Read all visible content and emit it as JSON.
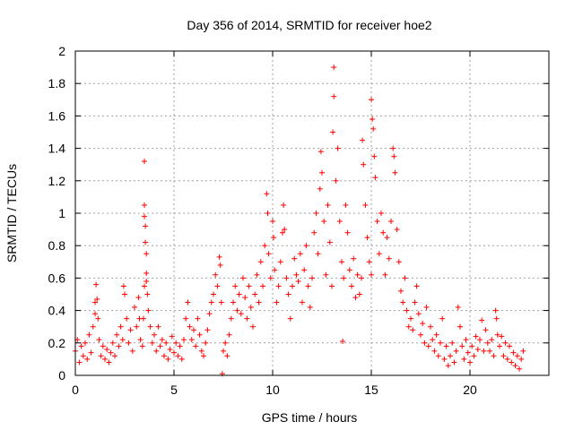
{
  "chart_data": {
    "type": "scatter",
    "title": "Day 356 of 2014, SRMTID for receiver hoe2",
    "xlabel": "GPS time / hours",
    "ylabel": "SRMTID / TECUs",
    "xlim": [
      0,
      24
    ],
    "ylim": [
      0,
      2
    ],
    "x_ticks": [
      0,
      5,
      10,
      15,
      20
    ],
    "x_tick_labels": [
      "0",
      "5",
      "10",
      "15",
      "20"
    ],
    "y_ticks": [
      0,
      0.2,
      0.4,
      0.6,
      0.8,
      1,
      1.2,
      1.4,
      1.6,
      1.8,
      2
    ],
    "y_tick_labels": [
      "0",
      "0.2",
      "0.4",
      "0.6",
      "0.8",
      "1",
      "1.2",
      "1.4",
      "1.6",
      "1.8",
      "2"
    ],
    "grid": true,
    "marker": "+",
    "color": "#ff0000",
    "series": [
      {
        "name": "SRMTID",
        "points": [
          [
            0.0,
            0.15
          ],
          [
            0.1,
            0.22
          ],
          [
            0.2,
            0.08
          ],
          [
            0.3,
            0.18
          ],
          [
            0.4,
            0.12
          ],
          [
            0.5,
            0.2
          ],
          [
            0.6,
            0.1
          ],
          [
            0.7,
            0.25
          ],
          [
            0.8,
            0.14
          ],
          [
            0.9,
            0.3
          ],
          [
            1.0,
            0.45
          ],
          [
            1.0,
            0.38
          ],
          [
            1.05,
            0.56
          ],
          [
            1.1,
            0.47
          ],
          [
            1.15,
            0.35
          ],
          [
            1.2,
            0.22
          ],
          [
            1.3,
            0.12
          ],
          [
            1.4,
            0.18
          ],
          [
            1.5,
            0.1
          ],
          [
            1.6,
            0.16
          ],
          [
            1.7,
            0.08
          ],
          [
            1.8,
            0.14
          ],
          [
            1.9,
            0.2
          ],
          [
            2.0,
            0.12
          ],
          [
            2.1,
            0.25
          ],
          [
            2.2,
            0.18
          ],
          [
            2.3,
            0.3
          ],
          [
            2.4,
            0.22
          ],
          [
            2.45,
            0.55
          ],
          [
            2.5,
            0.5
          ],
          [
            2.6,
            0.35
          ],
          [
            2.7,
            0.2
          ],
          [
            2.8,
            0.28
          ],
          [
            2.9,
            0.15
          ],
          [
            3.0,
            0.42
          ],
          [
            3.1,
            0.3
          ],
          [
            3.2,
            0.48
          ],
          [
            3.25,
            0.35
          ],
          [
            3.3,
            0.22
          ],
          [
            3.4,
            0.18
          ],
          [
            3.45,
            0.35
          ],
          [
            3.5,
            0.55
          ],
          [
            3.5,
            1.32
          ],
          [
            3.5,
            1.05
          ],
          [
            3.5,
            0.98
          ],
          [
            3.55,
            0.92
          ],
          [
            3.55,
            0.82
          ],
          [
            3.6,
            0.75
          ],
          [
            3.6,
            0.63
          ],
          [
            3.6,
            0.58
          ],
          [
            3.65,
            0.5
          ],
          [
            3.7,
            0.4
          ],
          [
            3.8,
            0.3
          ],
          [
            3.9,
            0.2
          ],
          [
            4.0,
            0.25
          ],
          [
            4.1,
            0.15
          ],
          [
            4.2,
            0.3
          ],
          [
            4.3,
            0.18
          ],
          [
            4.4,
            0.22
          ],
          [
            4.5,
            0.12
          ],
          [
            4.6,
            0.2
          ],
          [
            4.7,
            0.1
          ],
          [
            4.8,
            0.16
          ],
          [
            4.9,
            0.24
          ],
          [
            5.0,
            0.14
          ],
          [
            5.1,
            0.2
          ],
          [
            5.2,
            0.12
          ],
          [
            5.3,
            0.18
          ],
          [
            5.4,
            0.1
          ],
          [
            5.5,
            0.22
          ],
          [
            5.6,
            0.35
          ],
          [
            5.7,
            0.45
          ],
          [
            5.8,
            0.3
          ],
          [
            5.9,
            0.22
          ],
          [
            6.0,
            0.28
          ],
          [
            6.1,
            0.18
          ],
          [
            6.2,
            0.35
          ],
          [
            6.3,
            0.25
          ],
          [
            6.4,
            0.15
          ],
          [
            6.5,
            0.12
          ],
          [
            6.6,
            0.2
          ],
          [
            6.7,
            0.28
          ],
          [
            6.8,
            0.38
          ],
          [
            6.9,
            0.45
          ],
          [
            7.0,
            0.5
          ],
          [
            7.1,
            0.62
          ],
          [
            7.2,
            0.55
          ],
          [
            7.3,
            0.73
          ],
          [
            7.35,
            0.68
          ],
          [
            7.4,
            0.45
          ],
          [
            7.45,
            0.01
          ],
          [
            7.5,
            0.15
          ],
          [
            7.6,
            0.2
          ],
          [
            7.7,
            0.12
          ],
          [
            7.8,
            0.25
          ],
          [
            7.9,
            0.35
          ],
          [
            8.0,
            0.45
          ],
          [
            8.1,
            0.55
          ],
          [
            8.2,
            0.4
          ],
          [
            8.3,
            0.5
          ],
          [
            8.4,
            0.38
          ],
          [
            8.5,
            0.6
          ],
          [
            8.6,
            0.48
          ],
          [
            8.7,
            0.35
          ],
          [
            8.8,
            0.55
          ],
          [
            8.9,
            0.42
          ],
          [
            9.0,
            0.3
          ],
          [
            9.1,
            0.5
          ],
          [
            9.2,
            0.62
          ],
          [
            9.3,
            0.45
          ],
          [
            9.4,
            0.7
          ],
          [
            9.5,
            0.55
          ],
          [
            9.6,
            0.8
          ],
          [
            9.7,
            1.12
          ],
          [
            9.75,
            1.0
          ],
          [
            9.8,
            0.75
          ],
          [
            9.9,
            0.6
          ],
          [
            10.0,
            0.95
          ],
          [
            10.05,
            0.85
          ],
          [
            10.1,
            0.65
          ],
          [
            10.2,
            0.45
          ],
          [
            10.3,
            0.55
          ],
          [
            10.4,
            0.7
          ],
          [
            10.5,
            0.88
          ],
          [
            10.55,
            1.05
          ],
          [
            10.6,
            0.9
          ],
          [
            10.7,
            0.6
          ],
          [
            10.8,
            0.5
          ],
          [
            10.9,
            0.35
          ],
          [
            11.0,
            0.55
          ],
          [
            11.1,
            0.72
          ],
          [
            11.2,
            0.62
          ],
          [
            11.3,
            0.58
          ],
          [
            11.4,
            0.75
          ],
          [
            11.5,
            0.45
          ],
          [
            11.6,
            0.65
          ],
          [
            11.7,
            0.8
          ],
          [
            11.8,
            0.55
          ],
          [
            11.9,
            0.42
          ],
          [
            12.0,
            0.6
          ],
          [
            12.1,
            0.88
          ],
          [
            12.2,
            1.0
          ],
          [
            12.3,
            0.75
          ],
          [
            12.4,
            1.15
          ],
          [
            12.45,
            1.38
          ],
          [
            12.5,
            1.25
          ],
          [
            12.6,
            0.95
          ],
          [
            12.7,
            0.62
          ],
          [
            12.8,
            1.05
          ],
          [
            12.9,
            0.82
          ],
          [
            13.0,
            0.55
          ],
          [
            13.05,
            1.5
          ],
          [
            13.1,
            1.72
          ],
          [
            13.1,
            1.9
          ],
          [
            13.2,
            1.2
          ],
          [
            13.3,
            1.4
          ],
          [
            13.4,
            0.95
          ],
          [
            13.5,
            0.7
          ],
          [
            13.55,
            0.21
          ],
          [
            13.6,
            0.6
          ],
          [
            13.7,
            1.05
          ],
          [
            13.8,
            0.88
          ],
          [
            13.9,
            0.65
          ],
          [
            14.0,
            0.55
          ],
          [
            14.1,
            0.72
          ],
          [
            14.2,
            0.48
          ],
          [
            14.3,
            0.62
          ],
          [
            14.4,
            0.5
          ],
          [
            14.5,
            0.6
          ],
          [
            14.55,
            1.45
          ],
          [
            14.6,
            1.3
          ],
          [
            14.7,
            1.05
          ],
          [
            14.8,
            0.85
          ],
          [
            14.9,
            0.7
          ],
          [
            15.0,
            0.62
          ],
          [
            15.0,
            1.7
          ],
          [
            15.05,
            1.58
          ],
          [
            15.1,
            1.52
          ],
          [
            15.15,
            1.35
          ],
          [
            15.2,
            1.22
          ],
          [
            15.3,
            0.95
          ],
          [
            15.4,
            0.75
          ],
          [
            15.5,
            1.0
          ],
          [
            15.6,
            0.88
          ],
          [
            15.7,
            0.62
          ],
          [
            15.8,
            0.85
          ],
          [
            15.9,
            0.72
          ],
          [
            16.0,
            0.95
          ],
          [
            16.1,
            1.4
          ],
          [
            16.15,
            1.35
          ],
          [
            16.2,
            1.25
          ],
          [
            16.3,
            0.9
          ],
          [
            16.4,
            0.7
          ],
          [
            16.5,
            0.52
          ],
          [
            16.6,
            0.45
          ],
          [
            16.7,
            0.6
          ],
          [
            16.8,
            0.4
          ],
          [
            16.9,
            0.3
          ],
          [
            17.0,
            0.35
          ],
          [
            17.1,
            0.28
          ],
          [
            17.2,
            0.45
          ],
          [
            17.3,
            0.55
          ],
          [
            17.4,
            0.38
          ],
          [
            17.5,
            0.25
          ],
          [
            17.6,
            0.32
          ],
          [
            17.7,
            0.2
          ],
          [
            17.8,
            0.42
          ],
          [
            17.9,
            0.18
          ],
          [
            18.0,
            0.3
          ],
          [
            18.1,
            0.22
          ],
          [
            18.2,
            0.15
          ],
          [
            18.3,
            0.25
          ],
          [
            18.4,
            0.12
          ],
          [
            18.5,
            0.2
          ],
          [
            18.6,
            0.35
          ],
          [
            18.7,
            0.1
          ],
          [
            18.8,
            0.18
          ],
          [
            18.9,
            0.06
          ],
          [
            19.0,
            0.12
          ],
          [
            19.1,
            0.2
          ],
          [
            19.2,
            0.08
          ],
          [
            19.3,
            0.15
          ],
          [
            19.4,
            0.42
          ],
          [
            19.5,
            0.3
          ],
          [
            19.6,
            0.18
          ],
          [
            19.7,
            0.1
          ],
          [
            19.8,
            0.22
          ],
          [
            19.9,
            0.14
          ],
          [
            20.0,
            0.08
          ],
          [
            20.1,
            0.18
          ],
          [
            20.2,
            0.12
          ],
          [
            20.3,
            0.24
          ],
          [
            20.4,
            0.16
          ],
          [
            20.5,
            0.22
          ],
          [
            20.6,
            0.34
          ],
          [
            20.7,
            0.15
          ],
          [
            20.8,
            0.28
          ],
          [
            20.9,
            0.2
          ],
          [
            21.0,
            0.15
          ],
          [
            21.1,
            0.22
          ],
          [
            21.2,
            0.12
          ],
          [
            21.3,
            0.4
          ],
          [
            21.35,
            0.35
          ],
          [
            21.4,
            0.25
          ],
          [
            21.5,
            0.18
          ],
          [
            21.6,
            0.24
          ],
          [
            21.7,
            0.12
          ],
          [
            21.8,
            0.2
          ],
          [
            21.9,
            0.1
          ],
          [
            22.0,
            0.18
          ],
          [
            22.1,
            0.08
          ],
          [
            22.2,
            0.14
          ],
          [
            22.3,
            0.06
          ],
          [
            22.4,
            0.12
          ],
          [
            22.5,
            0.04
          ],
          [
            22.6,
            0.1
          ],
          [
            22.7,
            0.15
          ]
        ]
      }
    ]
  }
}
